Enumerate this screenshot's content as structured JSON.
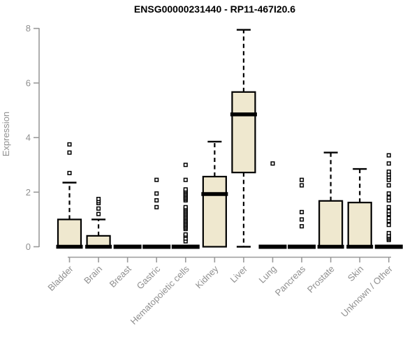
{
  "chart_data": {
    "type": "boxplot",
    "title": "ENSG00000231440 - RP11-467I20.6",
    "ylabel": "Expression",
    "xlabel": "",
    "ylim": [
      0,
      8
    ],
    "yticks": [
      0,
      2,
      4,
      6,
      8
    ],
    "grid": false,
    "legend": "none",
    "categories": [
      "Bladder",
      "Brain",
      "Breast",
      "Gastric",
      "Hematopoietic cells",
      "Kidney",
      "Liver",
      "Lung",
      "Pancreas",
      "Prostate",
      "Skin",
      "Unknown / Other"
    ],
    "boxes": [
      {
        "category": "Bladder",
        "low": 0,
        "q1": 0,
        "median": 0,
        "q3": 1.0,
        "high": 2.35,
        "outliers": [
          2.7,
          3.45,
          3.75
        ]
      },
      {
        "category": "Brain",
        "low": 0,
        "q1": 0,
        "median": 0,
        "q3": 0.4,
        "high": 1.0,
        "outliers": [
          1.2,
          1.4,
          1.6,
          1.67,
          1.75
        ]
      },
      {
        "category": "Breast",
        "low": 0,
        "q1": 0,
        "median": 0,
        "q3": 0,
        "high": 0,
        "outliers": []
      },
      {
        "category": "Gastric",
        "low": 0,
        "q1": 0,
        "median": 0,
        "q3": 0,
        "high": 0,
        "outliers": [
          1.45,
          1.7,
          1.95,
          2.45
        ]
      },
      {
        "category": "Hematopoietic cells",
        "low": 0,
        "q1": 0,
        "median": 0,
        "q3": 0,
        "high": 0,
        "outliers": [
          0.2,
          0.3,
          0.4,
          0.45,
          0.65,
          0.7,
          0.75,
          0.8,
          0.85,
          0.9,
          0.95,
          1.0,
          1.05,
          1.1,
          1.15,
          1.2,
          1.25,
          1.3,
          1.35,
          1.4,
          1.45,
          1.7,
          1.75,
          1.8,
          1.85,
          1.9,
          1.95,
          2.0,
          2.05,
          2.1,
          2.45,
          3.0
        ]
      },
      {
        "category": "Kidney",
        "low": 0,
        "q1": 0,
        "median": 1.93,
        "q3": 2.57,
        "high": 3.85,
        "outliers": []
      },
      {
        "category": "Liver",
        "low": 0,
        "q1": 2.72,
        "median": 4.85,
        "q3": 5.67,
        "high": 7.95,
        "outliers": []
      },
      {
        "category": "Lung",
        "low": 0,
        "q1": 0,
        "median": 0,
        "q3": 0,
        "high": 0,
        "outliers": [
          3.05
        ]
      },
      {
        "category": "Pancreas",
        "low": 0,
        "q1": 0,
        "median": 0,
        "q3": 0,
        "high": 0,
        "outliers": [
          0.75,
          1.0,
          1.27,
          2.25,
          2.45
        ]
      },
      {
        "category": "Prostate",
        "low": 0,
        "q1": 0,
        "median": 0,
        "q3": 1.68,
        "high": 3.45,
        "outliers": []
      },
      {
        "category": "Skin",
        "low": 0,
        "q1": 0,
        "median": 0,
        "q3": 1.62,
        "high": 2.85,
        "outliers": []
      },
      {
        "category": "Unknown / Other",
        "low": 0,
        "q1": 0,
        "median": 0,
        "q3": 0,
        "high": 0,
        "outliers": [
          0.25,
          0.3,
          0.35,
          0.4,
          0.5,
          0.8,
          0.95,
          1.05,
          1.2,
          1.3,
          1.45,
          1.7,
          1.8,
          1.95,
          2.25,
          2.45,
          2.55,
          2.65,
          2.75,
          3.05,
          3.35
        ]
      }
    ],
    "colors": {
      "box_fill": "#EFE8CF",
      "box_border": "#000000",
      "median": "#000000",
      "whisker": "#000000",
      "outlier_stroke": "#000000",
      "axis": "#9a9a9a",
      "tick_label": "#8f8f8f",
      "title": "#000000",
      "background": "#ffffff"
    }
  }
}
